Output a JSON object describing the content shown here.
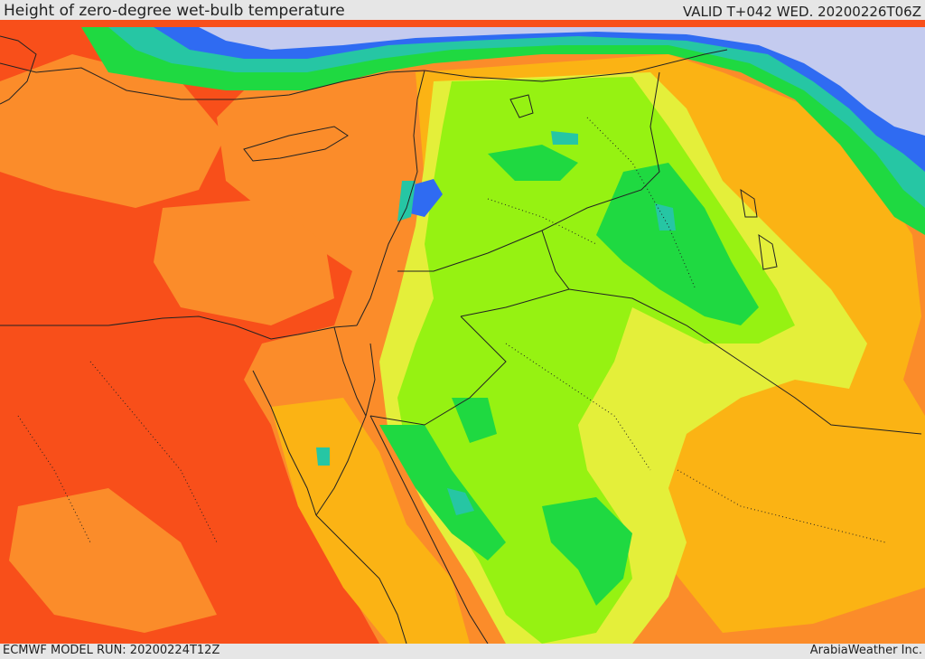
{
  "header": {
    "title": "Height of zero-degree wet-bulb temperature",
    "valid": "VALID T+042 WED. 20200226T06Z"
  },
  "footer": {
    "model_run": "ECMWF MODEL RUN: 20200224T12Z",
    "credit": "ArabiaWeather Inc."
  },
  "colors": {
    "red": "#f84f1a",
    "orange": "#fb8c2a",
    "amber": "#fbb314",
    "yellow": "#e4ef3a",
    "lime": "#96f212",
    "green": "#1fd941",
    "teal": "#26c6a4",
    "blue": "#2f6bf2",
    "lavender": "#c4cbef",
    "border": "#222222"
  }
}
